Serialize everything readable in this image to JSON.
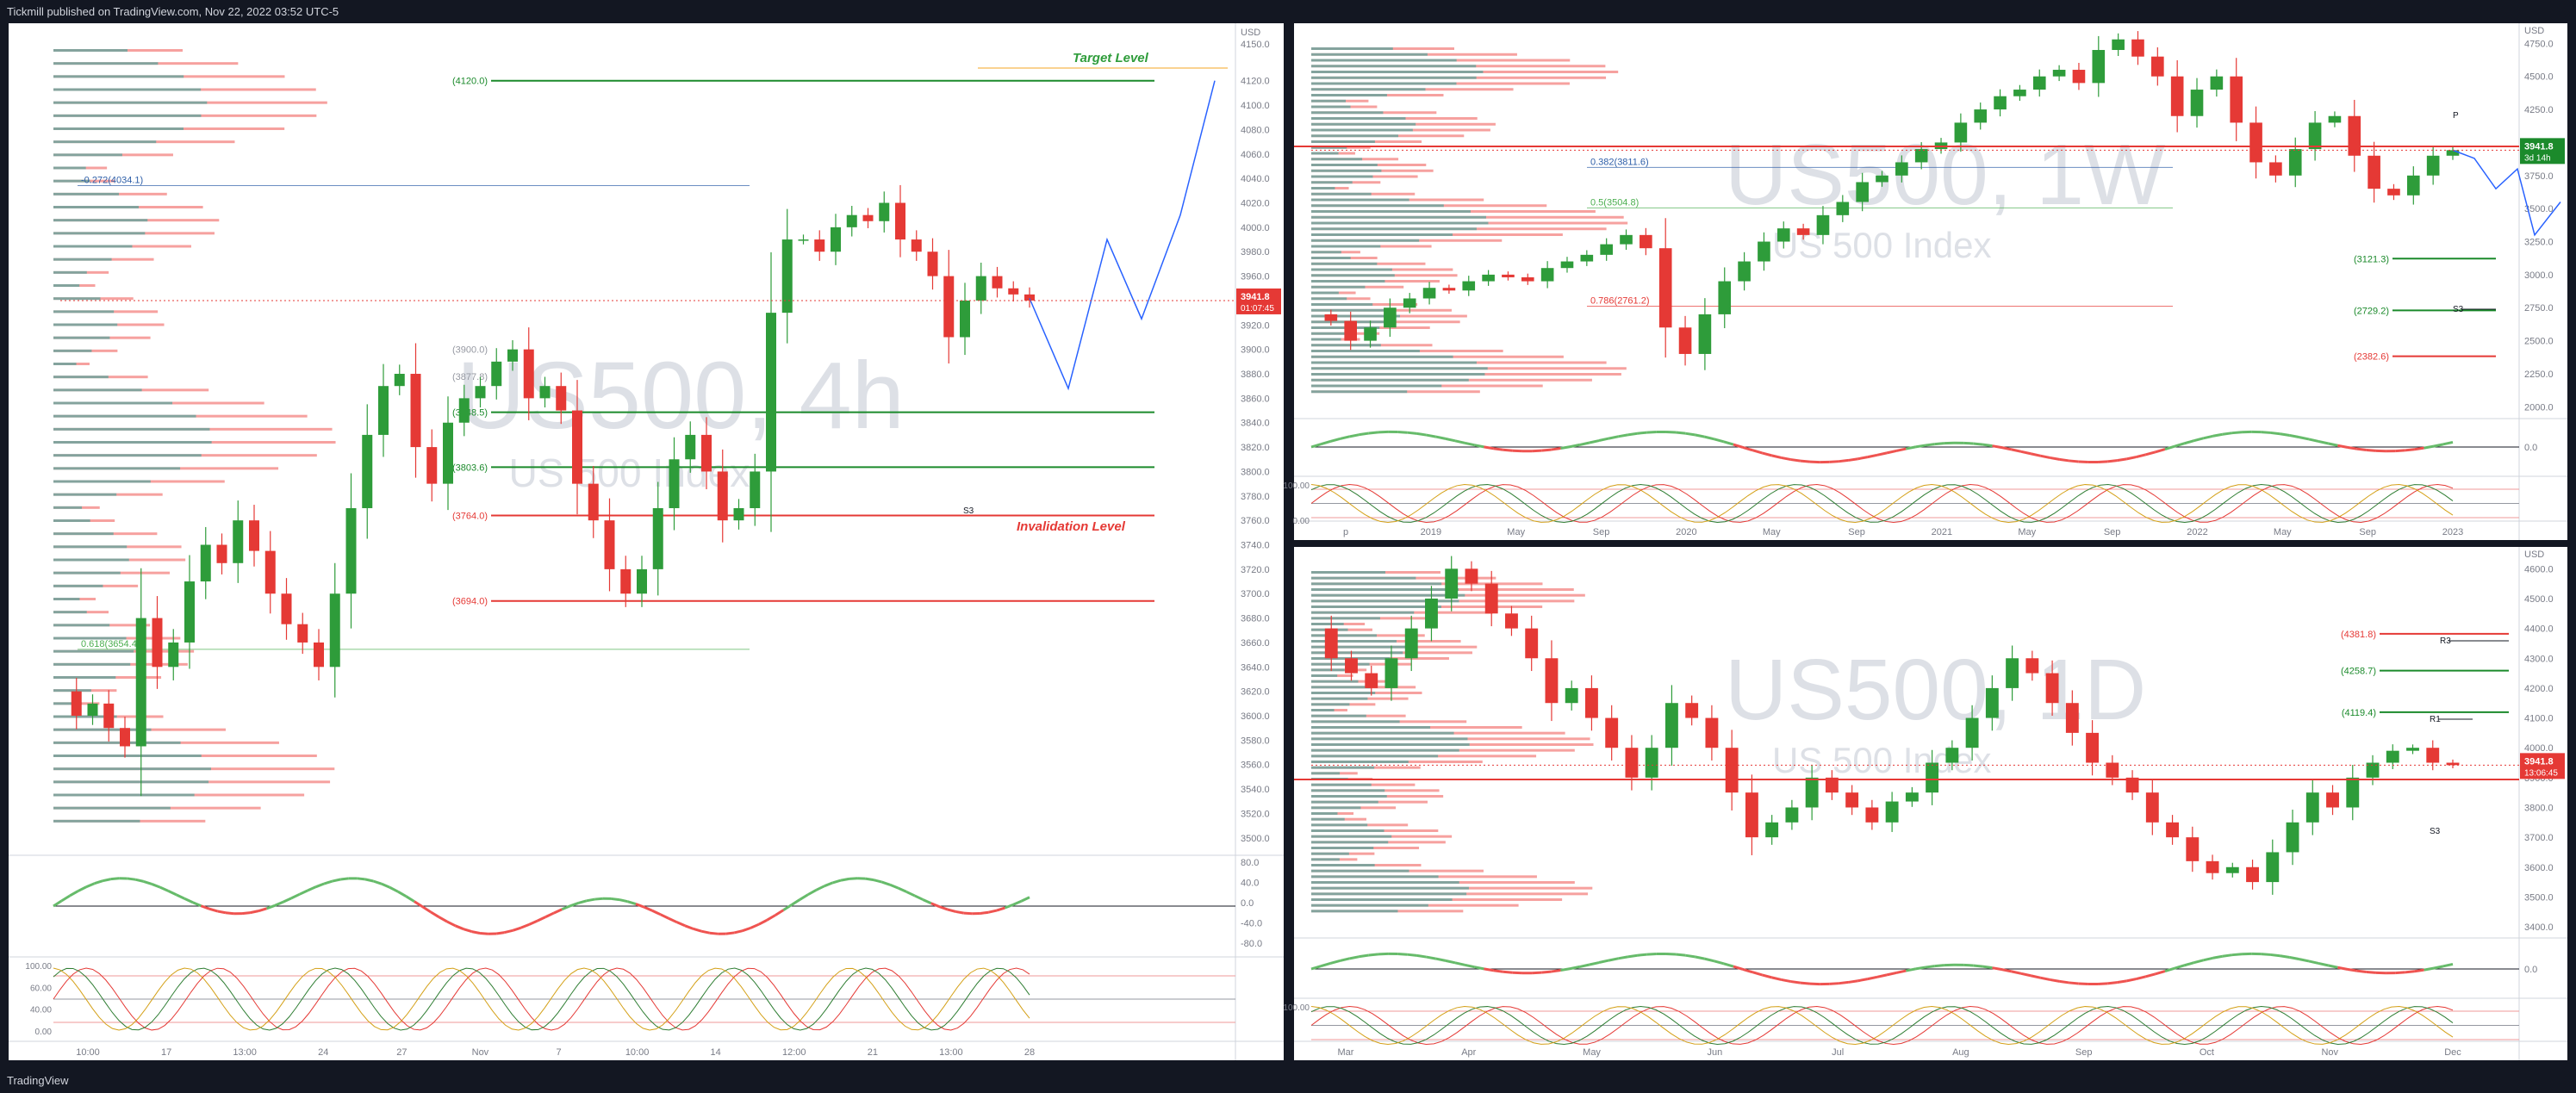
{
  "header": {
    "published": "Tickmill published on TradingView.com, Nov 22, 2022 03:52 UTC-5"
  },
  "footer": {
    "brand": "TradingView"
  },
  "panels": {
    "h4": {
      "watermark": {
        "symbol": "US500, 4h",
        "name": "US 500 Index"
      },
      "currency": "USD",
      "price_label": {
        "price": "3941.8",
        "countdown": "01:07:45"
      },
      "ticks": [
        "4150.0",
        "4120.0",
        "4100.0",
        "4080.0",
        "4060.0",
        "4040.0",
        "4020.0",
        "4000.0",
        "3980.0",
        "3960.0",
        "3940.0",
        "3920.0",
        "3900.0",
        "3880.0",
        "3860.0",
        "3840.0",
        "3820.0",
        "3800.0",
        "3780.0",
        "3760.0",
        "3740.0",
        "3720.0",
        "3700.0",
        "3680.0",
        "3660.0",
        "3640.0",
        "3620.0",
        "3600.0",
        "3580.0",
        "3560.0",
        "3540.0",
        "3520.0",
        "3500.0"
      ],
      "time_labels": [
        "10:00",
        "17",
        "13:00",
        "24",
        "27",
        "Nov",
        "7",
        "10:00",
        "14",
        "12:00",
        "21",
        "13:00",
        "28"
      ],
      "levels": [
        {
          "label": "(4120.0)",
          "price": 4120.0,
          "color": "#1b8a2b"
        },
        {
          "label": "(3848.5)",
          "price": 3848.5,
          "color": "#1b8a2b"
        },
        {
          "label": "(3803.6)",
          "price": 3803.6,
          "color": "#1b8a2b"
        },
        {
          "label": "(3764.0)",
          "price": 3764.0,
          "color": "#e53935"
        },
        {
          "label": "(3694.0)",
          "price": 3694.0,
          "color": "#e53935"
        }
      ],
      "fib_labels": [
        {
          "label": "-0.272(4034.1)",
          "price": 4034.1,
          "color": "#2d5ea8"
        },
        {
          "label": "0.618(3654.4)",
          "price": 3654.4,
          "color": "#4caf50"
        }
      ],
      "faint_labels": [
        {
          "label": "(3877.8)",
          "price": 3877.8
        },
        {
          "label": "(3900.0)",
          "price": 3900.0
        }
      ],
      "annotations": {
        "target": "Target Level",
        "invalidation": "Invalidation Level",
        "s3": "S3"
      },
      "osc_ticks": [
        "80.0",
        "40.0",
        "0.0",
        "-40.0",
        "-80.0"
      ],
      "stoch_ticks": [
        "100.00",
        "60.00",
        "40.00",
        "0.00"
      ]
    },
    "w1": {
      "watermark": {
        "symbol": "US500, 1W",
        "name": "US 500 Index"
      },
      "currency": "USD",
      "price_label": {
        "price": "3941.8",
        "countdown": "3d 14h"
      },
      "ticks": [
        "4750.0",
        "4500.0",
        "4250.0",
        "4000.0",
        "3750.0",
        "3500.0",
        "3250.0",
        "3000.0",
        "2750.0",
        "2500.0",
        "2250.0",
        "2000.0"
      ],
      "time_labels": [
        "p",
        "2019",
        "May",
        "Sep",
        "2020",
        "May",
        "Sep",
        "2021",
        "May",
        "Sep",
        "2022",
        "May",
        "Sep",
        "2023"
      ],
      "levels": [
        {
          "label": "(3121.3)",
          "price": 3121.3,
          "color": "#1b8a2b"
        },
        {
          "label": "(2729.2)",
          "price": 2729.2,
          "color": "#1b8a2b"
        },
        {
          "label": "(2382.6)",
          "price": 2382.6,
          "color": "#e53935"
        }
      ],
      "fib_labels": [
        {
          "label": "0.382(3811.6)",
          "price": 3811.6,
          "color": "#2d5ea8"
        },
        {
          "label": "0.5(3504.8)",
          "price": 3504.8,
          "color": "#4caf50"
        },
        {
          "label": "0.786(2761.2)",
          "price": 2761.2,
          "color": "#e53935"
        }
      ],
      "annotations": {
        "s3": "S3",
        "p": "P"
      },
      "osc_ticks": [
        "0.0"
      ],
      "stoch_ticks": [
        "100.00",
        "0.00"
      ]
    },
    "d1": {
      "watermark": {
        "symbol": "US500, 1D",
        "name": "US 500 Index"
      },
      "currency": "USD",
      "price_label": {
        "price": "3941.8",
        "countdown": "13:06:45"
      },
      "ticks": [
        "4600.0",
        "4500.0",
        "4400.0",
        "4300.0",
        "4200.0",
        "4100.0",
        "4000.0",
        "3900.0",
        "3800.0",
        "3700.0",
        "3600.0",
        "3500.0",
        "3400.0"
      ],
      "time_labels": [
        "Mar",
        "Apr",
        "May",
        "Jun",
        "Jul",
        "Aug",
        "Sep",
        "Oct",
        "Nov",
        "Dec"
      ],
      "levels": [
        {
          "label": "(4381.8)",
          "price": 4381.8,
          "color": "#e53935"
        },
        {
          "label": "(4258.7)",
          "price": 4258.7,
          "color": "#1b8a2b"
        },
        {
          "label": "(4119.4)",
          "price": 4119.4,
          "color": "#1b8a2b"
        }
      ],
      "annotations": {
        "r3": "R3",
        "r1": "R1",
        "s3": "S3"
      },
      "osc_ticks": [
        "0.0"
      ],
      "stoch_ticks": [
        "100.00"
      ]
    }
  },
  "chart_data": [
    {
      "type": "line",
      "title": "US500, 4h",
      "ylabel": "USD",
      "ylim": [
        3490,
        4160
      ],
      "series": [
        {
          "values": [
            3620,
            3600,
            3610,
            3590,
            3575,
            3680,
            3640,
            3660,
            3710,
            3740,
            3725,
            3760,
            3735,
            3700,
            3675,
            3660,
            3640,
            3700,
            3770,
            3830,
            3870,
            3880,
            3820,
            3790,
            3840,
            3860,
            3870,
            3890,
            3900,
            3860,
            3870,
            3850,
            3790,
            3760,
            3720,
            3700,
            3720,
            3770,
            3810,
            3830,
            3800,
            3760,
            3770,
            3800,
            3930,
            3990,
            3990,
            3980,
            4000,
            4010,
            4005,
            4020,
            3990,
            3980,
            3960,
            3910,
            3940,
            3960,
            3950,
            3945,
            3940
          ]
        }
      ]
    },
    {
      "type": "line",
      "title": "US500, 1W",
      "ylabel": "USD",
      "ylim": [
        1950,
        4850
      ],
      "series": [
        {
          "values": [
            2700,
            2650,
            2500,
            2600,
            2750,
            2820,
            2900,
            2880,
            2950,
            3000,
            2980,
            2950,
            3050,
            3100,
            3150,
            3230,
            3300,
            3200,
            2600,
            2400,
            2700,
            2950,
            3100,
            3250,
            3350,
            3300,
            3450,
            3550,
            3700,
            3750,
            3850,
            3950,
            4000,
            4150,
            4250,
            4350,
            4400,
            4500,
            4550,
            4450,
            4700,
            4780,
            4650,
            4500,
            4200,
            4400,
            4500,
            4150,
            3850,
            3750,
            3950,
            4150,
            4200,
            3900,
            3650,
            3600,
            3750,
            3900,
            3941.8
          ]
        }
      ]
    },
    {
      "type": "line",
      "title": "US500, 1D",
      "ylabel": "USD",
      "ylim": [
        3380,
        4650
      ],
      "series": [
        {
          "values": [
            4400,
            4300,
            4250,
            4200,
            4300,
            4400,
            4500,
            4600,
            4550,
            4450,
            4400,
            4300,
            4150,
            4200,
            4100,
            4000,
            3900,
            4000,
            4150,
            4100,
            4000,
            3850,
            3700,
            3750,
            3800,
            3900,
            3850,
            3800,
            3750,
            3820,
            3850,
            3950,
            4000,
            4100,
            4200,
            4300,
            4250,
            4150,
            4050,
            3950,
            3900,
            3850,
            3750,
            3700,
            3620,
            3580,
            3600,
            3550,
            3650,
            3750,
            3850,
            3800,
            3900,
            3950,
            3990,
            4000,
            3950,
            3941.8
          ]
        }
      ]
    }
  ]
}
